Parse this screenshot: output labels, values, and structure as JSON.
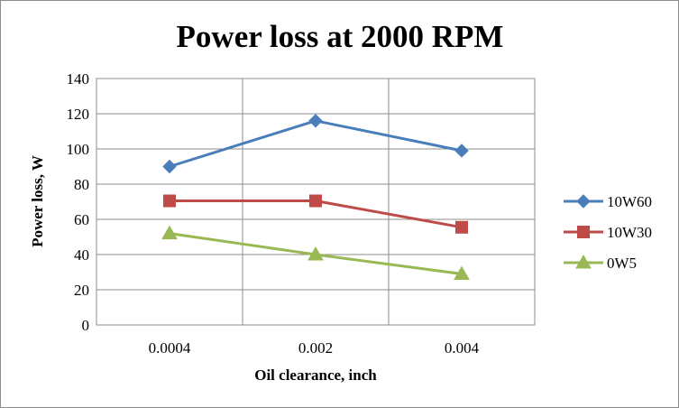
{
  "chart_data": {
    "type": "line",
    "title": "Power loss at 2000 RPM",
    "xlabel": "Oil clearance, inch",
    "ylabel": "Power loss, W",
    "categories": [
      "0.0004",
      "0.002",
      "0.004"
    ],
    "ylim": [
      0,
      140
    ],
    "yticks": [
      0,
      20,
      40,
      60,
      80,
      100,
      120,
      140
    ],
    "grid": true,
    "legend": "right",
    "series": [
      {
        "name": "10W60",
        "values": [
          90,
          116,
          99
        ],
        "color": "#4a7ebb",
        "marker": "diamond"
      },
      {
        "name": "10W30",
        "values": [
          70.5,
          70.5,
          55.5
        ],
        "color": "#be4b48",
        "marker": "square"
      },
      {
        "name": "0W5",
        "values": [
          52,
          40,
          29
        ],
        "color": "#98b954",
        "marker": "triangle"
      }
    ]
  }
}
